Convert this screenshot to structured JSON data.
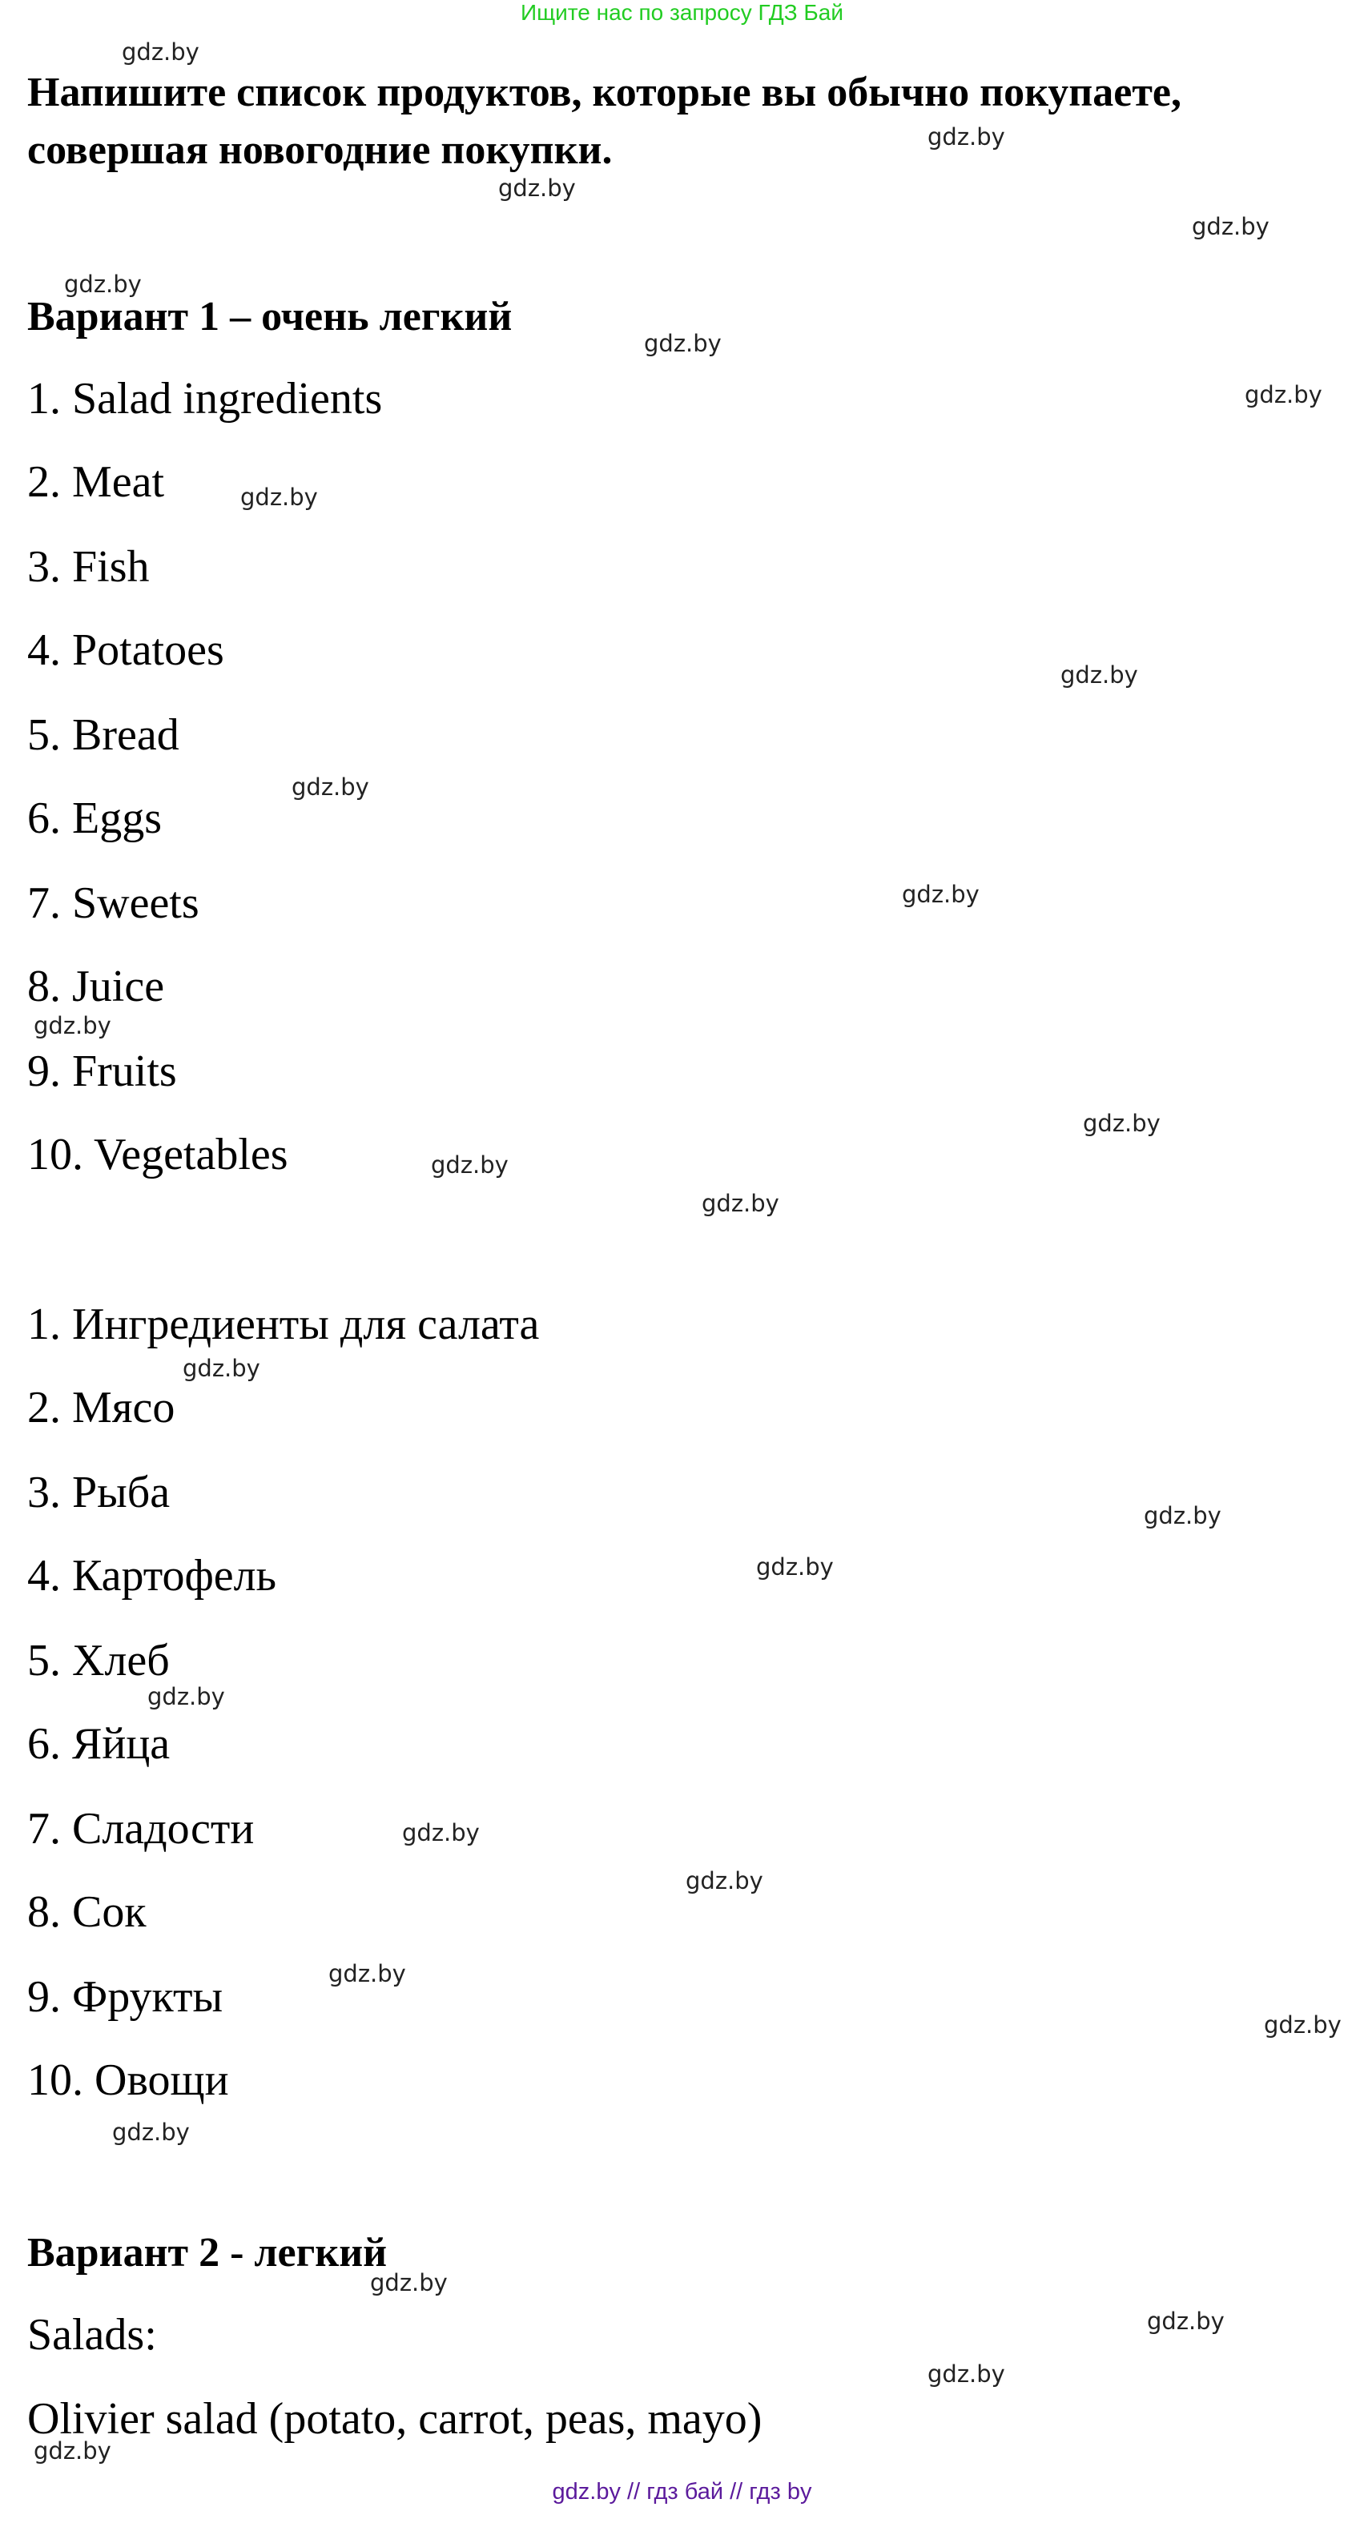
{
  "banner": "Ищите нас по запросу ГДЗ Бай",
  "title_line1": "Напишите список продуктов, которые вы обычно покупаете,",
  "title_line2": "совершая новогодние покупки.",
  "variant1": {
    "heading": "Вариант 1 – очень легкий",
    "english": [
      "1. Salad ingredients",
      "2. Meat",
      "3. Fish",
      "4. Potatoes",
      "5. Bread",
      "6. Eggs",
      "7. Sweets",
      "8. Juice",
      "9. Fruits",
      "10. Vegetables"
    ],
    "russian": [
      "1. Ингредиенты для салата",
      "2. Мясо",
      "3. Рыба",
      "4. Картофель",
      "5. Хлеб",
      "6. Яйца",
      "7. Сладости",
      "8. Сок",
      "9. Фрукты",
      "10. Овощи"
    ]
  },
  "variant2": {
    "heading": "Вариант 2 - легкий",
    "salads_label": "Salads:",
    "items": [
      "Olivier salad (potato, carrot, peas, mayo)"
    ]
  },
  "watermark": "gdz.by",
  "footer": "gdz.by  //  гдз бай  //  гдз by",
  "colors": {
    "banner": "#22cc22",
    "footer": "#5b1a9c",
    "text": "#000000"
  }
}
